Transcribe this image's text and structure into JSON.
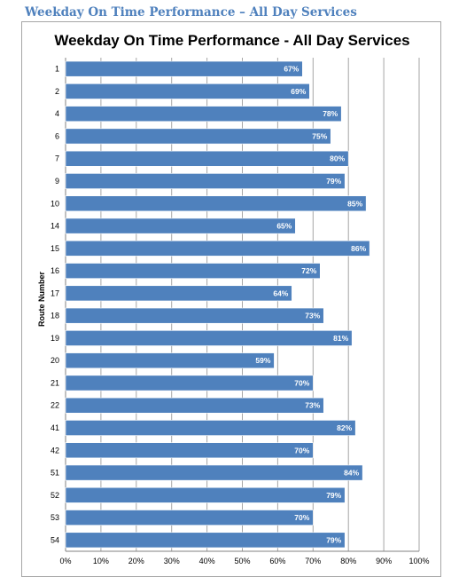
{
  "document": {
    "heading": "Weekday On Time Performance – All Day Services"
  },
  "chart_data": {
    "type": "bar",
    "orientation": "horizontal",
    "title": "Weekday On Time Performance - All Day Services",
    "xlabel": "",
    "ylabel": "Route Number",
    "categories": [
      "1",
      "2",
      "4",
      "6",
      "7",
      "9",
      "10",
      "14",
      "15",
      "16",
      "17",
      "18",
      "19",
      "20",
      "21",
      "22",
      "41",
      "42",
      "51",
      "52",
      "53",
      "54"
    ],
    "values": [
      67,
      69,
      78,
      75,
      80,
      79,
      85,
      65,
      86,
      72,
      64,
      73,
      81,
      59,
      70,
      73,
      82,
      70,
      84,
      79,
      70,
      79
    ],
    "data_labels": [
      "67%",
      "69%",
      "78%",
      "75%",
      "80%",
      "79%",
      "85%",
      "65%",
      "86%",
      "72%",
      "64%",
      "73%",
      "81%",
      "59%",
      "70%",
      "73%",
      "82%",
      "70%",
      "84%",
      "79%",
      "70%",
      "79%"
    ],
    "xlim": [
      0,
      100
    ],
    "x_ticks": [
      "0%",
      "10%",
      "20%",
      "30%",
      "40%",
      "50%",
      "60%",
      "70%",
      "80%",
      "90%",
      "100%"
    ],
    "grid": true,
    "bar_color": "#4f81bd",
    "bar_border_color": "#ffffff",
    "grid_color": "#a6a6a6",
    "legend": "none"
  }
}
